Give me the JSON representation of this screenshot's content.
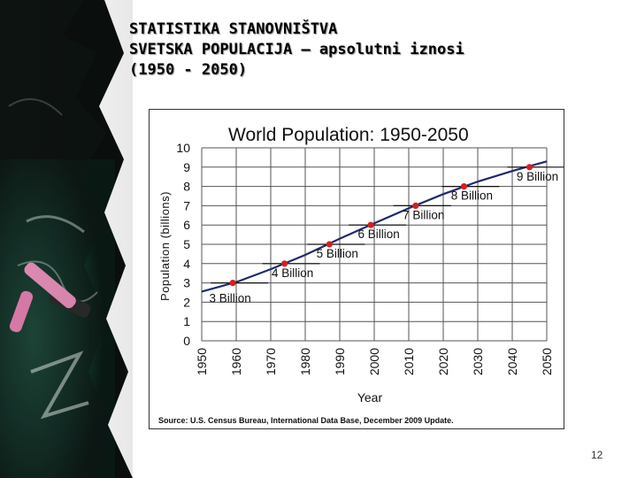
{
  "slide": {
    "title_lines": [
      "STATISTIKA STANOVNIŠTVA",
      "SVETSKA POPULACIJA – apsolutni iznosi",
      "(1950 - 2050)"
    ],
    "page_number": "12"
  },
  "chart_data": {
    "type": "line",
    "title": "World Population: 1950-2050",
    "xlabel": "Year",
    "ylabel": "Population (billions)",
    "x_ticks": [
      "1950",
      "1960",
      "1970",
      "1980",
      "1990",
      "2000",
      "2010",
      "2020",
      "2030",
      "2040",
      "2050"
    ],
    "y_ticks": [
      "0",
      "1",
      "2",
      "3",
      "4",
      "5",
      "6",
      "7",
      "8",
      "9",
      "10"
    ],
    "xlim": [
      1950,
      2050
    ],
    "ylim": [
      0,
      10
    ],
    "grid": true,
    "line_color": "#1f2a6b",
    "marker_color": "#d61f1f",
    "series": [
      {
        "x": [
          1950,
          1960,
          1970,
          1980,
          1990,
          2000,
          2010,
          2020,
          2030,
          2040,
          2050
        ],
        "y": [
          2.55,
          3.04,
          3.71,
          4.45,
          5.29,
          6.09,
          6.87,
          7.6,
          8.25,
          8.8,
          9.3
        ]
      }
    ],
    "milestones": [
      {
        "year": 1959,
        "value": 3,
        "label": "3 Billion"
      },
      {
        "year": 1974,
        "value": 4,
        "label": "4 Billion"
      },
      {
        "year": 1987,
        "value": 5,
        "label": "5 Billion"
      },
      {
        "year": 1999,
        "value": 6,
        "label": "6 Billion"
      },
      {
        "year": 2012,
        "value": 7,
        "label": "7 Billion"
      },
      {
        "year": 2026,
        "value": 8,
        "label": "8 Billion"
      },
      {
        "year": 2045,
        "value": 9,
        "label": "9 Billion"
      }
    ],
    "source": "Source: U.S. Census Bureau, International Data Base, December 2009 Update."
  }
}
